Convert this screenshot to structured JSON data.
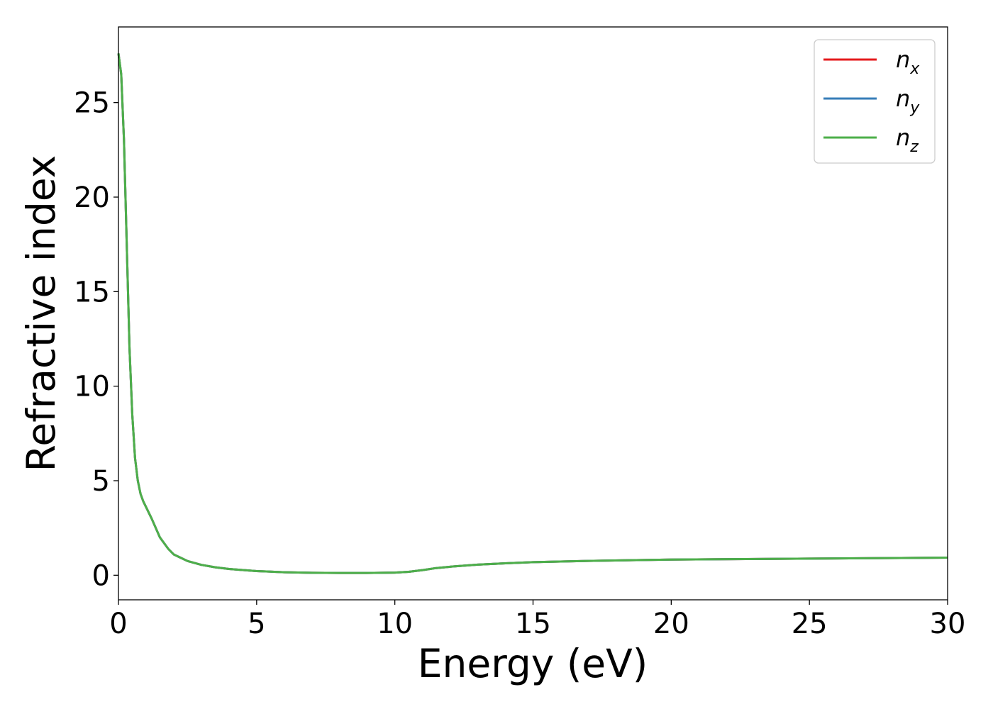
{
  "chart_data": {
    "type": "line",
    "xlabel": "Energy (eV)",
    "ylabel": "Refractive index",
    "xlim": [
      0,
      30
    ],
    "ylim": [
      -1.3,
      29
    ],
    "xticks": [
      0,
      5,
      10,
      15,
      20,
      25,
      30
    ],
    "yticks": [
      0,
      5,
      10,
      15,
      20,
      25
    ],
    "xtick_labels": [
      "0",
      "5",
      "10",
      "15",
      "20",
      "25",
      "30"
    ],
    "ytick_labels": [
      "0",
      "5",
      "10",
      "15",
      "20",
      "25"
    ],
    "grid": false,
    "legend_position": "top-right",
    "series": [
      {
        "name": "n_x",
        "label_base": "n",
        "label_sub": "x",
        "color": "#e41a1c",
        "x": [
          0.0,
          0.1,
          0.2,
          0.3,
          0.4,
          0.5,
          0.6,
          0.7,
          0.8,
          0.9,
          1.0,
          1.2,
          1.5,
          1.8,
          2.0,
          2.5,
          3.0,
          3.5,
          4.0,
          5.0,
          6.0,
          7.0,
          8.0,
          9.0,
          10.0,
          10.5,
          11.0,
          11.5,
          12.0,
          13.0,
          14.0,
          15.0,
          17.0,
          20.0,
          25.0,
          30.0
        ],
        "y": [
          27.6,
          26.5,
          23.0,
          17.5,
          12.0,
          8.5,
          6.2,
          5.0,
          4.3,
          3.9,
          3.6,
          3.0,
          2.0,
          1.4,
          1.1,
          0.75,
          0.55,
          0.42,
          0.33,
          0.22,
          0.16,
          0.13,
          0.12,
          0.12,
          0.14,
          0.18,
          0.27,
          0.38,
          0.45,
          0.56,
          0.63,
          0.69,
          0.76,
          0.83,
          0.88,
          0.93
        ]
      },
      {
        "name": "n_y",
        "label_base": "n",
        "label_sub": "y",
        "color": "#377eb8",
        "x": [
          0.0,
          0.1,
          0.2,
          0.3,
          0.4,
          0.5,
          0.6,
          0.7,
          0.8,
          0.9,
          1.0,
          1.2,
          1.5,
          1.8,
          2.0,
          2.5,
          3.0,
          3.5,
          4.0,
          5.0,
          6.0,
          7.0,
          8.0,
          9.0,
          10.0,
          10.5,
          11.0,
          11.5,
          12.0,
          13.0,
          14.0,
          15.0,
          17.0,
          20.0,
          25.0,
          30.0
        ],
        "y": [
          27.6,
          26.5,
          23.0,
          17.5,
          12.0,
          8.5,
          6.2,
          5.0,
          4.3,
          3.9,
          3.6,
          3.0,
          2.0,
          1.4,
          1.1,
          0.75,
          0.55,
          0.42,
          0.33,
          0.22,
          0.16,
          0.13,
          0.12,
          0.12,
          0.14,
          0.18,
          0.27,
          0.38,
          0.45,
          0.56,
          0.63,
          0.69,
          0.76,
          0.83,
          0.88,
          0.93
        ]
      },
      {
        "name": "n_z",
        "label_base": "n",
        "label_sub": "z",
        "color": "#4daf4a",
        "x": [
          0.0,
          0.1,
          0.2,
          0.3,
          0.4,
          0.5,
          0.6,
          0.7,
          0.8,
          0.9,
          1.0,
          1.2,
          1.5,
          1.8,
          2.0,
          2.5,
          3.0,
          3.5,
          4.0,
          5.0,
          6.0,
          7.0,
          8.0,
          9.0,
          10.0,
          10.5,
          11.0,
          11.5,
          12.0,
          13.0,
          14.0,
          15.0,
          17.0,
          20.0,
          25.0,
          30.0
        ],
        "y": [
          27.6,
          26.5,
          23.0,
          17.5,
          12.0,
          8.5,
          6.2,
          5.0,
          4.3,
          3.9,
          3.6,
          3.0,
          2.0,
          1.4,
          1.1,
          0.75,
          0.55,
          0.42,
          0.33,
          0.22,
          0.16,
          0.13,
          0.12,
          0.12,
          0.14,
          0.18,
          0.27,
          0.38,
          0.45,
          0.56,
          0.63,
          0.69,
          0.76,
          0.83,
          0.88,
          0.93
        ]
      }
    ]
  }
}
